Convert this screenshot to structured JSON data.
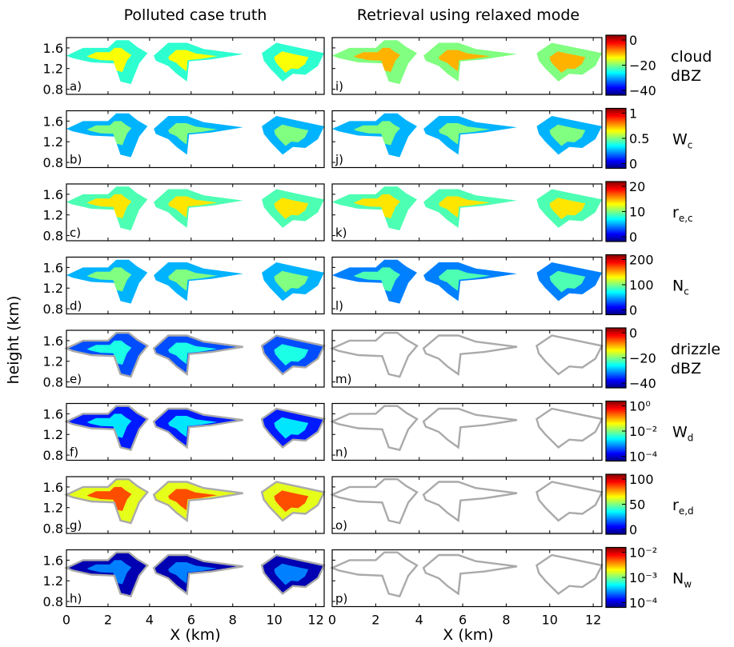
{
  "chart_data": {
    "type": "heatmap",
    "column_titles": [
      "Polluted case truth",
      "Retrieval using relaxed mode"
    ],
    "ylabel": "height (km)",
    "xlabel": "X (km)",
    "x_ticks": [
      "0",
      "2",
      "4",
      "6",
      "8",
      "10",
      "12"
    ],
    "y_ticks": [
      "1.6",
      "1.2",
      "0.8"
    ],
    "xlim": [
      0,
      12.4
    ],
    "ylim": [
      0.7,
      1.8
    ],
    "colormap": "jet",
    "colormap_stops": [
      "#00007f",
      "#0000ff",
      "#0080ff",
      "#00ffff",
      "#80ff80",
      "#ffff00",
      "#ff8000",
      "#ff0000",
      "#7f0000"
    ],
    "outline_color": "#aaaaaa",
    "rows": [
      {
        "label_main": "cloud",
        "label_sub": "dBZ",
        "label_suffix": "",
        "cbar_ticks": [
          "0",
          "−20",
          "−40"
        ],
        "cbar_range": [
          -45,
          5
        ],
        "left_panel": "a)",
        "right_panel": "i)",
        "left_intensity": 0.42,
        "right_intensity": 0.5,
        "right_visible": true,
        "outline": false
      },
      {
        "label_main": "W",
        "label_sub": "c",
        "label_suffix": "",
        "cbar_ticks": [
          "1",
          "0.5",
          "0"
        ],
        "cbar_range": [
          0,
          1
        ],
        "left_panel": "b)",
        "right_panel": "j)",
        "left_intensity": 0.3,
        "right_intensity": 0.3,
        "right_visible": true,
        "outline": false
      },
      {
        "label_main": "r",
        "label_sub": "e,c",
        "label_suffix": "",
        "cbar_ticks": [
          "20",
          "10",
          "0"
        ],
        "cbar_range": [
          0,
          24
        ],
        "left_panel": "c)",
        "right_panel": "k)",
        "left_intensity": 0.45,
        "right_intensity": 0.45,
        "right_visible": true,
        "outline": false
      },
      {
        "label_main": "N",
        "label_sub": "c",
        "label_suffix": "",
        "cbar_ticks": [
          "200",
          "100",
          "0"
        ],
        "cbar_range": [
          0,
          200
        ],
        "left_panel": "d)",
        "right_panel": "l)",
        "left_intensity": 0.3,
        "right_intensity": 0.25,
        "right_visible": true,
        "outline": false
      },
      {
        "label_main": "drizzle",
        "label_sub": "dBZ",
        "label_suffix": "",
        "cbar_ticks": [
          "0",
          "−20",
          "−40"
        ],
        "cbar_range": [
          -45,
          0
        ],
        "left_panel": "e)",
        "right_panel": "m)",
        "left_intensity": 0.2,
        "right_intensity": 0,
        "right_visible": false,
        "outline": true
      },
      {
        "label_main": "W",
        "label_sub": "d",
        "label_suffix": "",
        "cbar_ticks": [
          "10⁰",
          "10⁻²",
          "10⁻⁴"
        ],
        "cbar_range": [
          -4.5,
          0
        ],
        "left_panel": "f)",
        "right_panel": "n)",
        "left_intensity": 0.15,
        "right_intensity": 0,
        "right_visible": false,
        "outline": true
      },
      {
        "label_main": "r",
        "label_sub": "e,d",
        "label_suffix": "",
        "cbar_ticks": [
          "100",
          "50",
          "0"
        ],
        "cbar_range": [
          0,
          100
        ],
        "left_panel": "g)",
        "right_panel": "o)",
        "left_intensity": 0.6,
        "right_intensity": 0,
        "right_visible": false,
        "outline": true
      },
      {
        "label_main": "N",
        "label_sub": "w",
        "label_suffix": "",
        "cbar_ticks": [
          "10⁻²",
          "10⁻³",
          "10⁻⁴"
        ],
        "cbar_range": [
          -4,
          -2
        ],
        "left_panel": "h)",
        "right_panel": "p)",
        "left_intensity": 0.05,
        "right_intensity": 0,
        "right_visible": false,
        "outline": true
      }
    ]
  }
}
